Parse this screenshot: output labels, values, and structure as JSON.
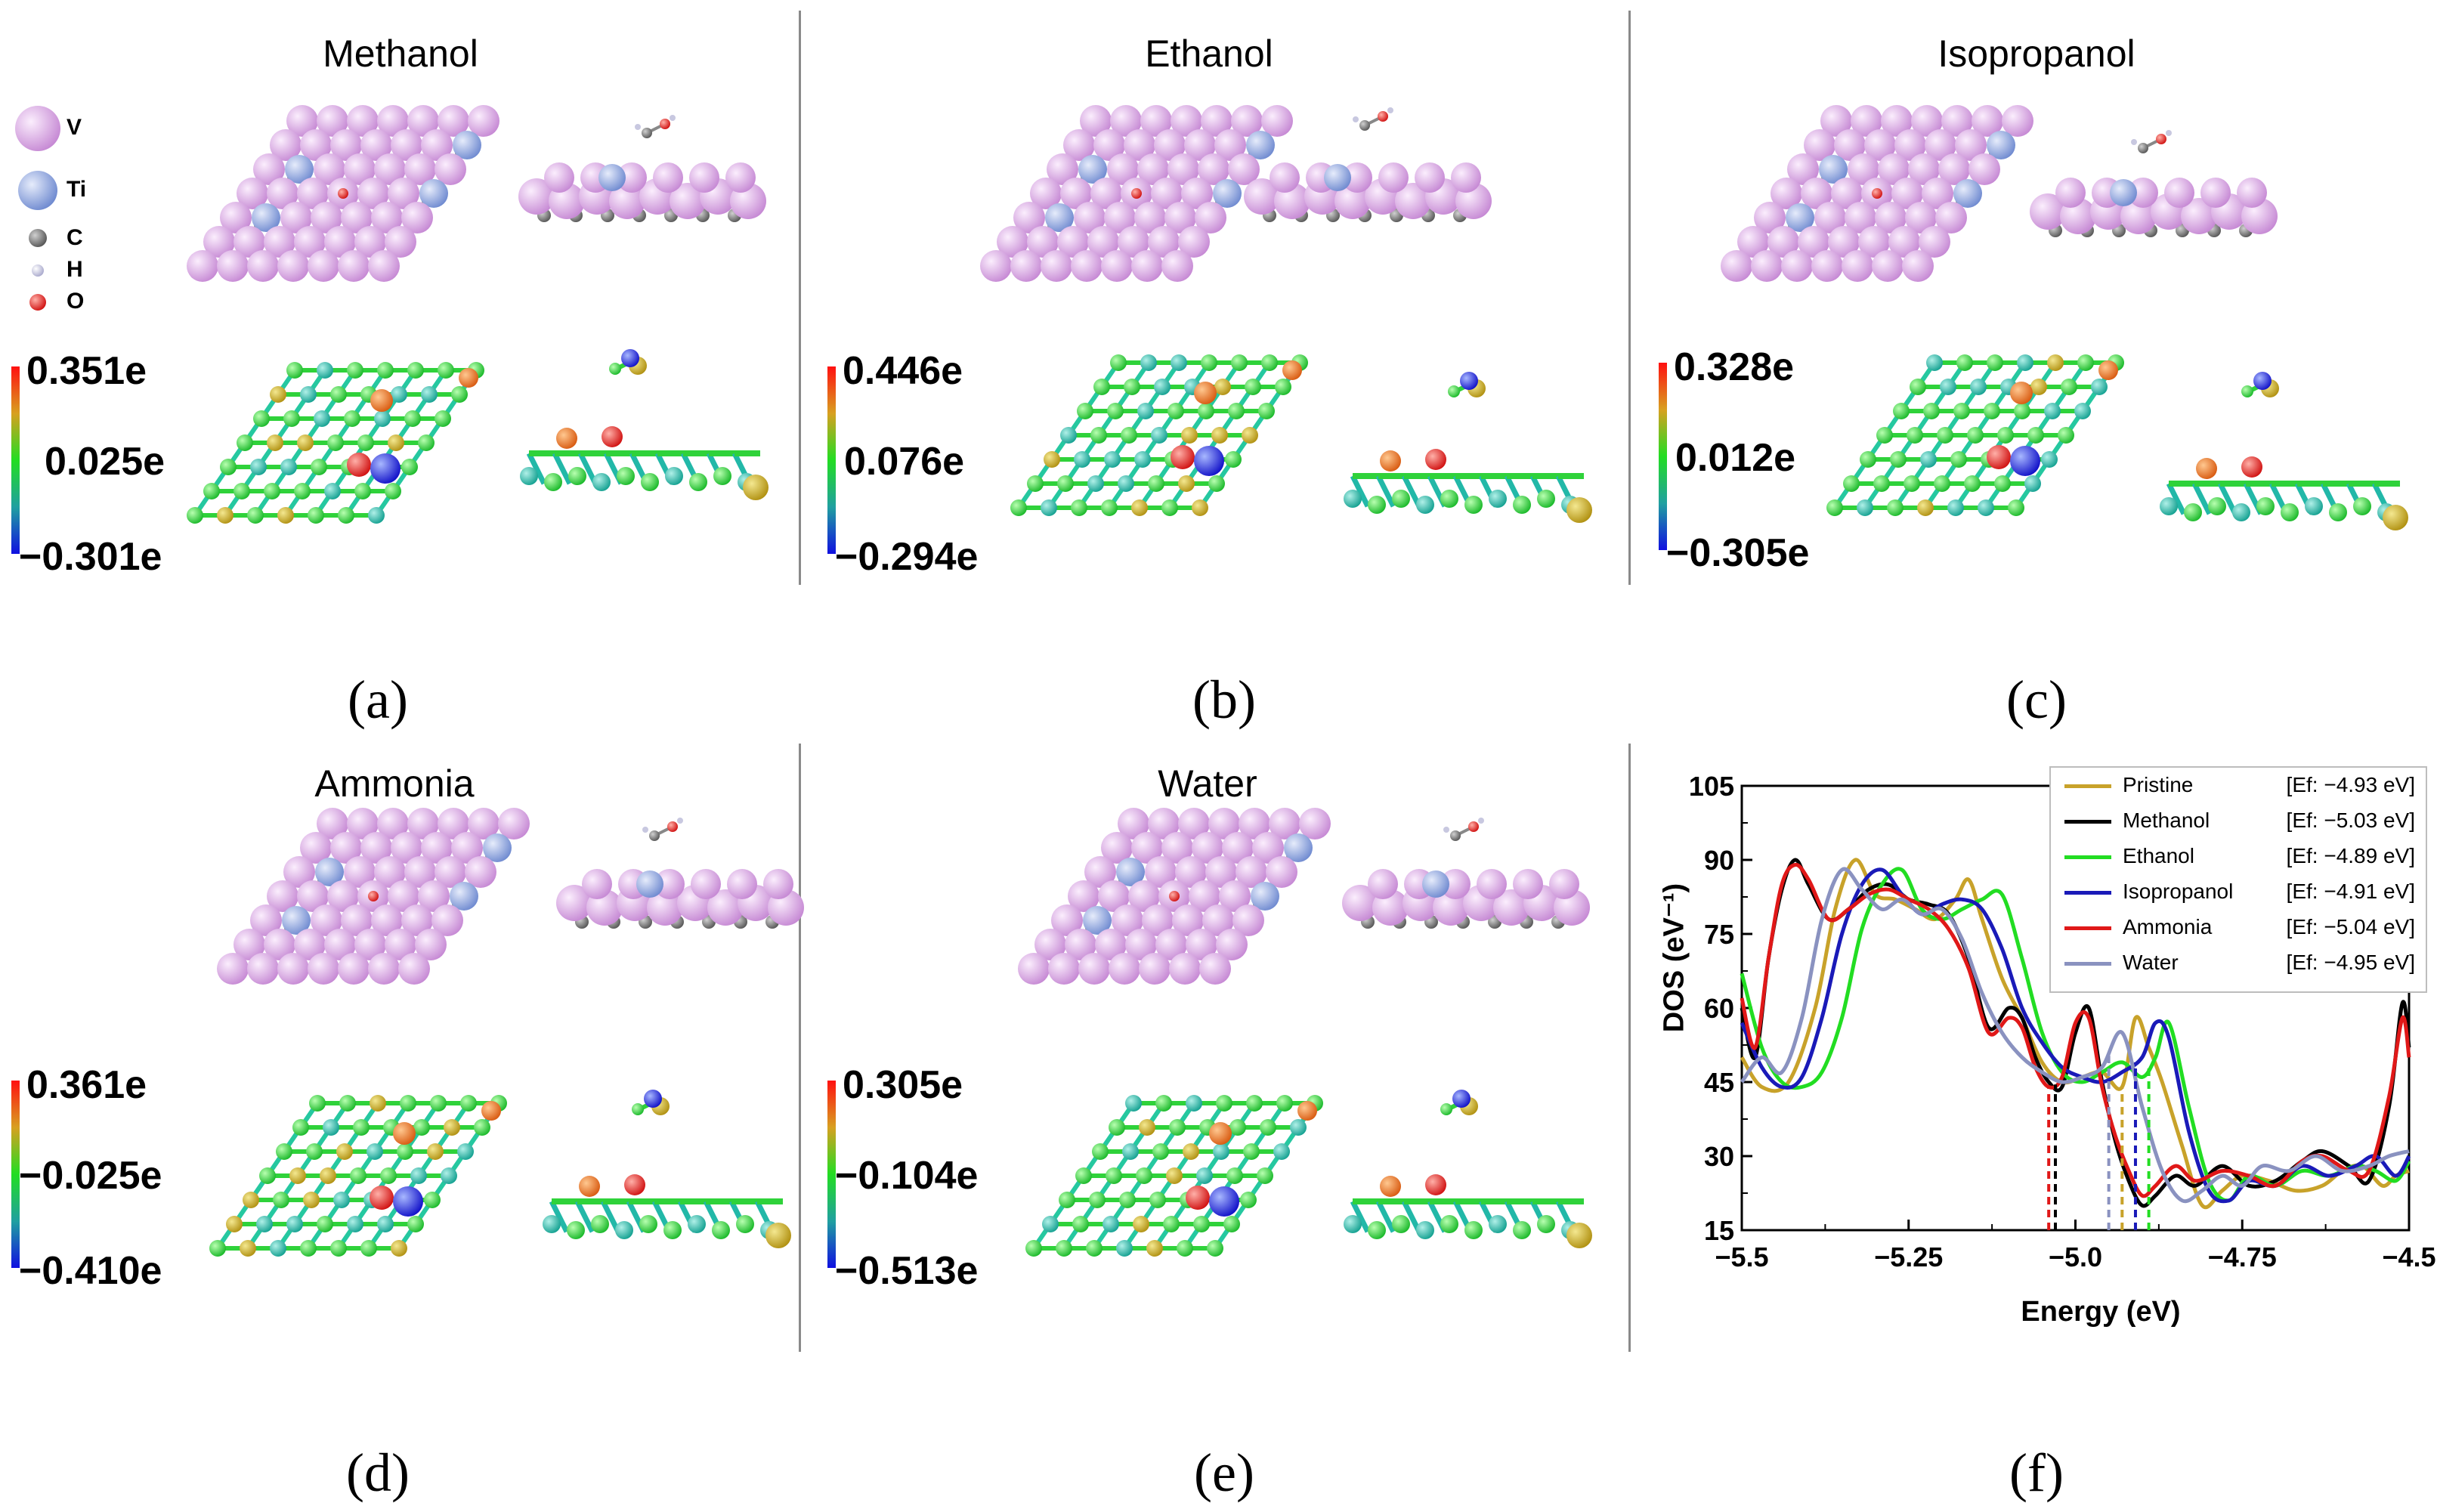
{
  "panels": [
    {
      "id": "a",
      "title": "Methanol",
      "label": "(a)",
      "cbar": {
        "max": "0.351e",
        "mid": "0.025e",
        "min": "−0.301e"
      }
    },
    {
      "id": "b",
      "title": "Ethanol",
      "label": "(b)",
      "cbar": {
        "max": "0.446e",
        "mid": "0.076e",
        "min": "−0.294e"
      }
    },
    {
      "id": "c",
      "title": "Isopropanol",
      "label": "(c)",
      "cbar": {
        "max": "0.328e",
        "mid": "0.012e",
        "min": "−0.305e"
      }
    },
    {
      "id": "d",
      "title": "Ammonia",
      "label": "(d)",
      "cbar": {
        "max": "0.361e",
        "mid": "−0.025e",
        "min": "−0.410e"
      }
    },
    {
      "id": "e",
      "title": "Water",
      "label": "(e)",
      "cbar": {
        "max": "0.305e",
        "mid": "−0.104e",
        "min": "−0.513e"
      }
    },
    {
      "id": "f",
      "title": "",
      "label": "(f)"
    }
  ],
  "atom_legend": [
    {
      "symbol": "V",
      "color": "#d9a9e3"
    },
    {
      "symbol": "Ti",
      "color": "#8fa6dd"
    },
    {
      "symbol": "C",
      "color": "#777777"
    },
    {
      "symbol": "H",
      "color": "#c8c8e0"
    },
    {
      "symbol": "O",
      "color": "#e0201b"
    }
  ],
  "chart_data": {
    "type": "line",
    "xlabel": "Energy (eV)",
    "ylabel": "DOS (eV⁻¹)",
    "xlim": [
      -5.5,
      -4.5
    ],
    "ylim": [
      15,
      105
    ],
    "xticks": [
      -5.5,
      -5.25,
      -5.0,
      -4.75,
      -4.5
    ],
    "xtick_labels": [
      "−5.5",
      "−5.25",
      "−5.0",
      "−4.75",
      "−4.5"
    ],
    "yticks": [
      15,
      30,
      45,
      60,
      75,
      90,
      105
    ],
    "ytick_labels": [
      "15",
      "30",
      "45",
      "60",
      "75",
      "90",
      "105"
    ],
    "legend_position": "top-right",
    "series": [
      {
        "name": "Pristine",
        "ef_label": "[Ef: −4.93 eV]",
        "ef": -4.93,
        "color": "#c8a22a",
        "x": [
          -5.5,
          -5.47,
          -5.43,
          -5.39,
          -5.36,
          -5.33,
          -5.3,
          -5.27,
          -5.24,
          -5.21,
          -5.18,
          -5.16,
          -5.14,
          -5.11,
          -5.08,
          -5.05,
          -5.02,
          -4.99,
          -4.96,
          -4.93,
          -4.91,
          -4.89,
          -4.87,
          -4.84,
          -4.81,
          -4.78,
          -4.75,
          -4.71,
          -4.67,
          -4.63,
          -4.6,
          -4.57,
          -4.54,
          -4.52,
          -4.5
        ],
        "y": [
          50,
          44,
          45,
          60,
          80,
          90,
          83,
          82,
          80,
          78,
          82,
          86,
          78,
          66,
          58,
          49,
          45,
          46,
          47,
          44,
          58,
          52,
          45,
          32,
          20,
          23,
          26,
          25,
          23,
          24,
          27,
          28,
          24,
          26,
          27
        ]
      },
      {
        "name": "Methanol",
        "ef_label": "[Ef: −5.03 eV]",
        "ef": -5.03,
        "color": "#000000",
        "x": [
          -5.5,
          -5.48,
          -5.46,
          -5.44,
          -5.42,
          -5.4,
          -5.37,
          -5.34,
          -5.31,
          -5.28,
          -5.25,
          -5.22,
          -5.19,
          -5.16,
          -5.13,
          -5.1,
          -5.08,
          -5.06,
          -5.04,
          -5.02,
          -5.0,
          -4.98,
          -4.96,
          -4.94,
          -4.92,
          -4.9,
          -4.88,
          -4.85,
          -4.82,
          -4.78,
          -4.74,
          -4.7,
          -4.66,
          -4.63,
          -4.59,
          -4.56,
          -4.53,
          -4.51,
          -4.5
        ],
        "y": [
          60,
          50,
          70,
          84,
          90,
          85,
          78,
          80,
          84,
          85,
          82,
          81,
          79,
          70,
          56,
          60,
          58,
          50,
          45,
          44,
          55,
          60,
          45,
          33,
          25,
          20,
          22,
          26,
          24,
          28,
          24,
          25,
          29,
          31,
          28,
          25,
          40,
          61,
          52
        ]
      },
      {
        "name": "Ethanol",
        "ef_label": "[Ef: −4.89 eV]",
        "ef": -4.89,
        "color": "#22dd22",
        "x": [
          -5.5,
          -5.47,
          -5.44,
          -5.41,
          -5.38,
          -5.35,
          -5.32,
          -5.29,
          -5.26,
          -5.23,
          -5.2,
          -5.17,
          -5.14,
          -5.11,
          -5.08,
          -5.05,
          -5.02,
          -4.99,
          -4.96,
          -4.93,
          -4.9,
          -4.88,
          -4.86,
          -4.83,
          -4.8,
          -4.77,
          -4.74,
          -4.7,
          -4.66,
          -4.62,
          -4.58,
          -4.55,
          -4.52,
          -4.5
        ],
        "y": [
          67,
          52,
          45,
          44,
          47,
          58,
          76,
          85,
          88,
          80,
          78,
          80,
          82,
          83,
          70,
          55,
          47,
          45,
          47,
          49,
          46,
          50,
          57,
          40,
          25,
          21,
          26,
          24,
          27,
          26,
          28,
          27,
          25,
          29
        ]
      },
      {
        "name": "Isopropanol",
        "ef_label": "[Ef: −4.91 eV]",
        "ef": -4.91,
        "color": "#1a1ab8",
        "x": [
          -5.5,
          -5.47,
          -5.44,
          -5.41,
          -5.38,
          -5.35,
          -5.32,
          -5.29,
          -5.26,
          -5.23,
          -5.2,
          -5.17,
          -5.14,
          -5.11,
          -5.08,
          -5.05,
          -5.02,
          -4.99,
          -4.96,
          -4.93,
          -4.9,
          -4.88,
          -4.86,
          -4.83,
          -4.8,
          -4.77,
          -4.74,
          -4.7,
          -4.66,
          -4.62,
          -4.58,
          -4.55,
          -4.52,
          -4.5
        ],
        "y": [
          57,
          48,
          44,
          46,
          58,
          75,
          85,
          88,
          83,
          79,
          81,
          82,
          80,
          72,
          60,
          53,
          48,
          46,
          45,
          47,
          50,
          57,
          54,
          35,
          23,
          21,
          25,
          24,
          28,
          26,
          28,
          30,
          26,
          30
        ]
      },
      {
        "name": "Ammonia",
        "ef_label": "[Ef: −5.04 eV]",
        "ef": -5.04,
        "color": "#e01818",
        "x": [
          -5.5,
          -5.48,
          -5.46,
          -5.44,
          -5.42,
          -5.4,
          -5.37,
          -5.34,
          -5.31,
          -5.28,
          -5.25,
          -5.22,
          -5.19,
          -5.16,
          -5.13,
          -5.1,
          -5.08,
          -5.06,
          -5.04,
          -5.02,
          -5.0,
          -4.98,
          -4.96,
          -4.94,
          -4.92,
          -4.9,
          -4.88,
          -4.85,
          -4.82,
          -4.78,
          -4.74,
          -4.7,
          -4.66,
          -4.63,
          -4.59,
          -4.56,
          -4.53,
          -4.51,
          -4.5
        ],
        "y": [
          62,
          52,
          70,
          85,
          89,
          86,
          78,
          80,
          83,
          84,
          82,
          80,
          76,
          68,
          55,
          58,
          56,
          48,
          44,
          46,
          57,
          58,
          44,
          34,
          27,
          22,
          24,
          28,
          25,
          27,
          26,
          24,
          29,
          30,
          27,
          27,
          42,
          58,
          50
        ]
      },
      {
        "name": "Water",
        "ef_label": "[Ef: −4.95 eV]",
        "ef": -4.95,
        "color": "#8a92c0",
        "x": [
          -5.5,
          -5.47,
          -5.44,
          -5.41,
          -5.38,
          -5.35,
          -5.32,
          -5.29,
          -5.26,
          -5.23,
          -5.2,
          -5.17,
          -5.14,
          -5.11,
          -5.08,
          -5.05,
          -5.02,
          -4.99,
          -4.96,
          -4.93,
          -4.9,
          -4.87,
          -4.84,
          -4.81,
          -4.78,
          -4.75,
          -4.72,
          -4.68,
          -4.64,
          -4.6,
          -4.56,
          -4.53,
          -4.5
        ],
        "y": [
          45,
          50,
          47,
          58,
          78,
          88,
          84,
          80,
          82,
          79,
          80,
          74,
          63,
          55,
          50,
          47,
          45,
          46,
          48,
          55,
          40,
          27,
          21,
          23,
          26,
          24,
          28,
          27,
          30,
          27,
          28,
          30,
          31
        ]
      }
    ]
  }
}
